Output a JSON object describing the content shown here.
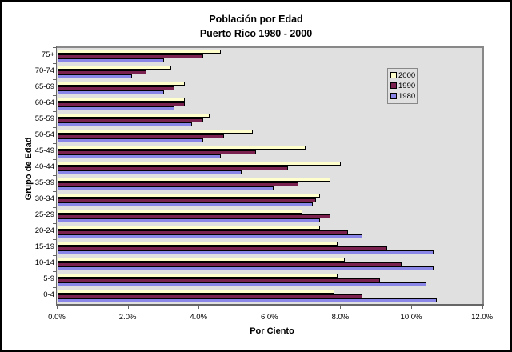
{
  "chart_data": {
    "type": "bar",
    "orientation": "horizontal",
    "title": "Población por Edad",
    "subtitle": "Puerto Rico 1980 - 2000",
    "xlabel": "Por Ciento",
    "ylabel": "Grupo de Edad",
    "xlim": [
      0,
      12
    ],
    "x_ticks": [
      "0.0%",
      "2.0%",
      "4.0%",
      "6.0%",
      "8.0%",
      "10.0%",
      "12.0%"
    ],
    "categories": [
      "75+",
      "70-74",
      "65-69",
      "60-64",
      "55-59",
      "50-54",
      "45-49",
      "40-44",
      "35-39",
      "30-34",
      "25-29",
      "20-24",
      "15-19",
      "10-14",
      "5-9",
      "0-4"
    ],
    "series": [
      {
        "name": "2000",
        "color": "#FFFFCC",
        "values": [
          4.6,
          3.2,
          3.6,
          3.6,
          4.3,
          5.5,
          7.0,
          8.0,
          7.7,
          7.4,
          6.9,
          7.4,
          7.9,
          8.1,
          7.9,
          7.8
        ]
      },
      {
        "name": "1990",
        "color": "#7A2150",
        "values": [
          4.1,
          2.5,
          3.3,
          3.6,
          4.1,
          4.7,
          5.6,
          6.5,
          6.8,
          7.3,
          7.7,
          8.2,
          9.3,
          9.7,
          9.1,
          8.6
        ]
      },
      {
        "name": "1980",
        "color": "#8A86E8",
        "values": [
          3.0,
          2.1,
          3.0,
          3.3,
          3.8,
          4.1,
          4.6,
          5.2,
          6.1,
          7.2,
          7.4,
          8.6,
          10.6,
          10.6,
          10.4,
          10.7
        ]
      }
    ],
    "legend": [
      "2000",
      "1990",
      "1980"
    ],
    "legend_position": "upper right inside plot",
    "grid": false
  }
}
